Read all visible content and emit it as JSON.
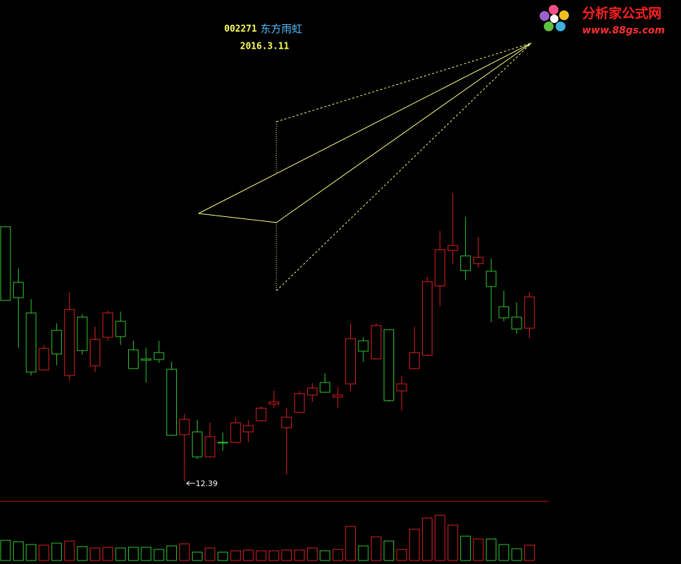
{
  "chart_data": {
    "type": "candlestick",
    "title": "002271",
    "subtitle": "东方雨虹",
    "date": "2016.3.11",
    "open": [
      16.05,
      15.25,
      14.81,
      13.99,
      14.56,
      13.91,
      14.75,
      14.05,
      14.46,
      14.69,
      14.28,
      14.15,
      14.24,
      14.0,
      13.06,
      13.1,
      12.74,
      12.95,
      12.95,
      13.1,
      13.26,
      13.5,
      13.16,
      13.38,
      13.63,
      13.81,
      13.6,
      13.79,
      14.41,
      14.15,
      14.57,
      13.69,
      14.01,
      14.2,
      15.2,
      15.71,
      15.63,
      15.52,
      15.41,
      14.9,
      14.75,
      14.59
    ],
    "high": [
      16.05,
      15.45,
      15.01,
      14.35,
      14.66,
      15.11,
      14.79,
      14.61,
      14.85,
      14.83,
      14.41,
      14.31,
      14.41,
      14.11,
      13.36,
      13.27,
      13.23,
      13.09,
      13.31,
      13.27,
      13.47,
      13.69,
      13.44,
      13.69,
      13.8,
      13.94,
      13.75,
      14.66,
      14.46,
      14.66,
      14.57,
      13.9,
      14.61,
      15.33,
      15.99,
      16.53,
      16.19,
      15.9,
      15.59,
      15.13,
      14.96,
      15.11
    ],
    "low": [
      14.99,
      14.31,
      13.91,
      13.98,
      14.06,
      13.84,
      14.21,
      13.96,
      14.41,
      14.35,
      14.01,
      13.81,
      14.09,
      13.04,
      12.39,
      12.71,
      12.73,
      12.83,
      12.94,
      12.95,
      13.25,
      13.44,
      12.49,
      13.37,
      13.53,
      13.66,
      13.44,
      13.69,
      14.11,
      14.14,
      13.53,
      13.41,
      14.0,
      14.19,
      14.91,
      15.51,
      15.28,
      15.46,
      14.68,
      14.69,
      14.51,
      14.45
    ],
    "close": [
      14.99,
      15.03,
      13.96,
      14.3,
      14.22,
      14.86,
      14.27,
      14.43,
      14.81,
      14.47,
      14.01,
      14.13,
      14.14,
      13.05,
      13.28,
      12.74,
      13.03,
      12.94,
      13.23,
      13.19,
      13.44,
      13.53,
      13.31,
      13.65,
      13.73,
      13.67,
      13.63,
      14.44,
      14.26,
      14.63,
      13.55,
      13.79,
      14.24,
      15.26,
      15.72,
      15.78,
      15.42,
      15.61,
      15.19,
      14.74,
      14.58,
      15.04
    ],
    "volume": [
      29,
      27,
      23,
      22,
      25,
      28,
      20,
      18,
      19,
      18,
      19,
      19,
      16,
      21,
      24,
      12,
      18,
      12,
      14,
      15,
      14,
      14,
      15,
      15,
      18,
      14,
      16,
      49,
      21,
      34,
      28,
      16,
      45,
      61,
      65,
      51,
      35,
      31,
      31,
      23,
      17,
      22
    ],
    "ylim": [
      12.11,
      19.31
    ],
    "vlim": [
      0,
      86
    ],
    "up_color": "#e02020",
    "down_color": "#30c830"
  },
  "logo": {
    "name": "分析家公式网",
    "url": "www.88gs.com"
  }
}
